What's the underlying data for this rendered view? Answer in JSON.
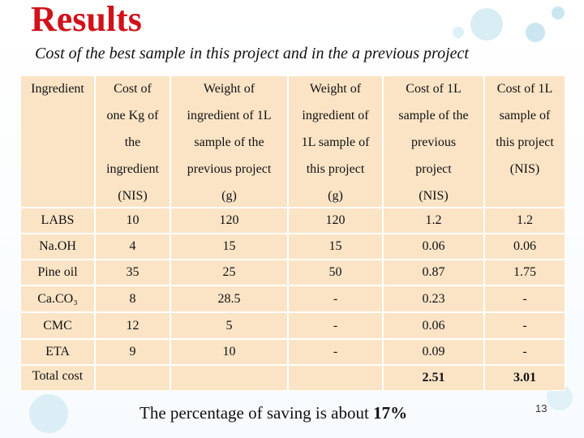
{
  "title": "Results",
  "subtitle": "Cost of the best sample in this project and in the a previous project",
  "table": {
    "header": [
      [
        "Ingredient"
      ],
      [
        "Cost of",
        "one Kg of",
        "the",
        "ingredient",
        "(NIS)"
      ],
      [
        "Weight  of",
        "ingredient of 1L",
        "sample of the",
        "previous project",
        "(g)"
      ],
      [
        "Weight of",
        "ingredient of",
        "1L sample of",
        "this  project",
        "(g)"
      ],
      [
        "Cost of 1L",
        "sample of the",
        "previous",
        "project",
        "(NIS)"
      ],
      [
        "Cost of 1L",
        "sample of",
        "this  project",
        "(NIS)"
      ]
    ],
    "rows": [
      [
        "LABS",
        "10",
        "120",
        "120",
        "1.2",
        "1.2"
      ],
      [
        "Na.OH",
        "4",
        "15",
        "15",
        "0.06",
        "0.06"
      ],
      [
        "Pine oil",
        "35",
        "25",
        "50",
        "0.87",
        "1.75"
      ],
      [
        "Ca.CO₃",
        "8",
        "28.5",
        "-",
        "0.23",
        "-"
      ],
      [
        "CMC",
        "12",
        "5",
        "-",
        "0.06",
        "-"
      ],
      [
        "ETA",
        "9",
        "10",
        "-",
        "0.09",
        "-"
      ]
    ],
    "total": {
      "label": "Total cost",
      "previous": "2.51",
      "current": "3.01"
    }
  },
  "footer": {
    "text": "The percentage of saving is about ",
    "highlight": "17%"
  },
  "page_number": "13"
}
